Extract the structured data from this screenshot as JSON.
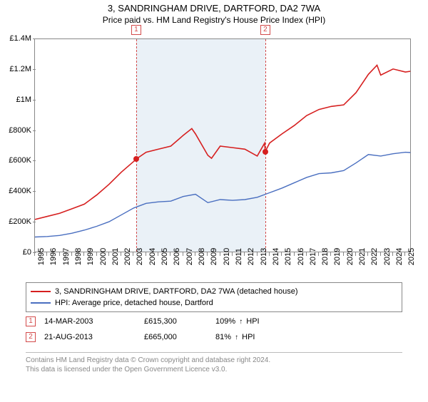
{
  "title": "3, SANDRINGHAM DRIVE, DARTFORD, DA2 7WA",
  "subtitle": "Price paid vs. HM Land Registry's House Price Index (HPI)",
  "chart": {
    "type": "line",
    "background_color": "#ffffff",
    "border_color": "#888888",
    "highlight_band_color": "#eaf1f7",
    "highlight_start_year": 2003.2,
    "highlight_end_year": 2013.65,
    "vline_color": "#d34a4a",
    "xlim": [
      1995,
      2025.5
    ],
    "ylim": [
      0,
      1400000
    ],
    "ytick_step": 200000,
    "ytick_labels": [
      "£0",
      "£200K",
      "£400K",
      "£600K",
      "£800K",
      "£1M",
      "£1.2M",
      "£1.4M"
    ],
    "xtick_years": [
      1995,
      1996,
      1997,
      1998,
      1999,
      2000,
      2001,
      2002,
      2003,
      2004,
      2005,
      2006,
      2007,
      2008,
      2009,
      2010,
      2011,
      2012,
      2013,
      2014,
      2015,
      2016,
      2017,
      2018,
      2019,
      2020,
      2021,
      2022,
      2023,
      2024,
      2025
    ],
    "label_fontsize": 11,
    "series_price": {
      "color": "#d61f1f",
      "width": 1.6,
      "label": "3, SANDRINGHAM DRIVE, DARTFORD, DA2 7WA (detached house)",
      "x": [
        1995,
        1996,
        1997,
        1998,
        1999,
        2000,
        2001,
        2002,
        2003,
        2003.2,
        2004,
        2005,
        2006,
        2007,
        2007.7,
        2008,
        2009,
        2009.3,
        2010,
        2011,
        2012,
        2013,
        2013.6,
        2013.65,
        2014,
        2015,
        2016,
        2017,
        2018,
        2019,
        2020,
        2021,
        2022,
        2022.7,
        2023,
        2024,
        2025,
        2025.4
      ],
      "y": [
        220000,
        240000,
        260000,
        290000,
        320000,
        380000,
        450000,
        530000,
        600000,
        615300,
        660000,
        680000,
        700000,
        770000,
        815000,
        780000,
        640000,
        620000,
        700000,
        690000,
        680000,
        635000,
        720000,
        665000,
        720000,
        780000,
        835000,
        900000,
        940000,
        960000,
        970000,
        1050000,
        1170000,
        1230000,
        1165000,
        1205000,
        1185000,
        1190000
      ]
    },
    "series_hpi": {
      "color": "#4a6fc0",
      "width": 1.4,
      "label": "HPI: Average price, detached house, Dartford",
      "x": [
        1995,
        1996,
        1997,
        1998,
        1999,
        2000,
        2001,
        2002,
        2003,
        2004,
        2005,
        2006,
        2007,
        2008,
        2009,
        2010,
        2011,
        2012,
        2013,
        2014,
        2015,
        2016,
        2017,
        2018,
        2019,
        2020,
        2021,
        2022,
        2023,
        2024,
        2025,
        2025.4
      ],
      "y": [
        105000,
        108000,
        115000,
        130000,
        150000,
        175000,
        205000,
        250000,
        295000,
        325000,
        335000,
        340000,
        370000,
        385000,
        330000,
        350000,
        345000,
        350000,
        365000,
        395000,
        425000,
        460000,
        495000,
        520000,
        525000,
        540000,
        590000,
        645000,
        635000,
        650000,
        660000,
        658000
      ]
    },
    "sale_dots": [
      {
        "year": 2003.2,
        "value": 615300
      },
      {
        "year": 2013.65,
        "value": 665000
      }
    ],
    "markers": [
      {
        "num": "1",
        "year": 2003.2
      },
      {
        "num": "2",
        "year": 2013.65
      }
    ]
  },
  "legend": {
    "border_color": "#888888",
    "items": [
      {
        "color": "#d61f1f",
        "label_key": "chart.series_price.label"
      },
      {
        "color": "#4a6fc0",
        "label_key": "chart.series_hpi.label"
      }
    ]
  },
  "sales": [
    {
      "num": "1",
      "date": "14-MAR-2003",
      "price": "£615,300",
      "pct": "109%",
      "arrow": "↑",
      "suffix": "HPI"
    },
    {
      "num": "2",
      "date": "21-AUG-2013",
      "price": "£665,000",
      "pct": "81%",
      "arrow": "↑",
      "suffix": "HPI"
    }
  ],
  "footer": {
    "line1": "Contains HM Land Registry data © Crown copyright and database right 2024.",
    "line2": "This data is licensed under the Open Government Licence v3.0."
  },
  "colors": {
    "marker_border": "#d34a4a",
    "sale_dot": "#d61f1f",
    "footer_text": "#888888"
  }
}
